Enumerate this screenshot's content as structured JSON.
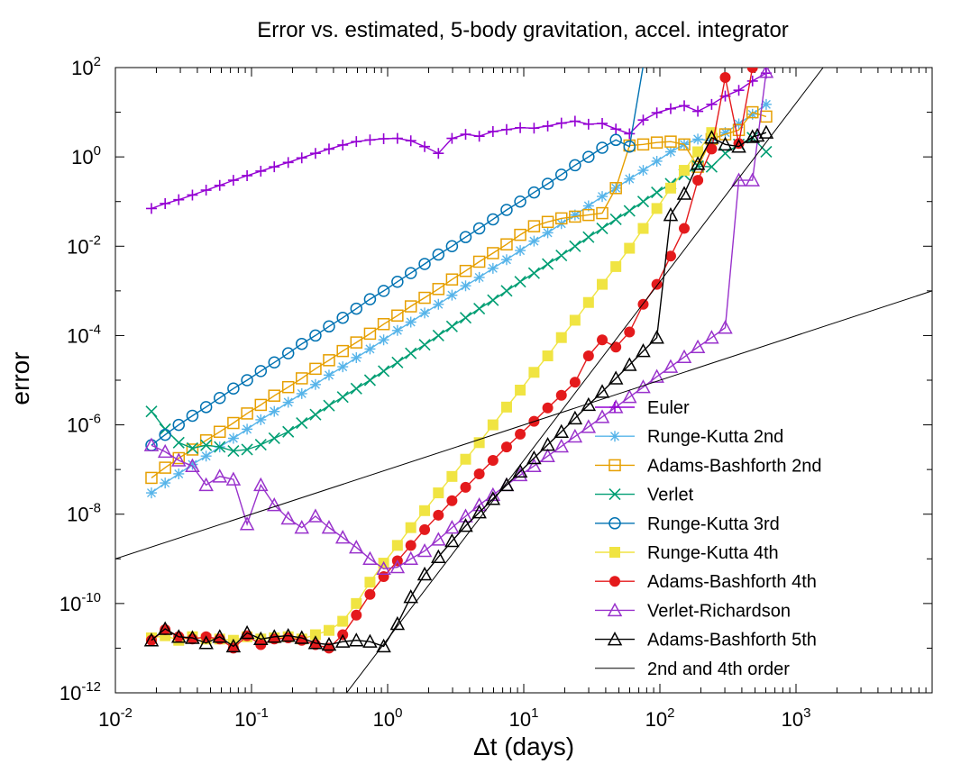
{
  "chart_data": {
    "type": "line",
    "title": "Error vs. estimated, 5-body gravitation, accel. integrator",
    "xlabel": "Δt (days)",
    "ylabel": "error",
    "xscale": "log",
    "yscale": "log",
    "xlim": [
      0.01,
      10000
    ],
    "ylim": [
      1e-12,
      100
    ],
    "x_ticks": [
      {
        "value": 0.01,
        "base": "10",
        "exp": "-2"
      },
      {
        "value": 0.1,
        "base": "10",
        "exp": "-1"
      },
      {
        "value": 1,
        "base": "10",
        "exp": "0"
      },
      {
        "value": 10,
        "base": "10",
        "exp": "1"
      },
      {
        "value": 100,
        "base": "10",
        "exp": "2"
      },
      {
        "value": 1000,
        "base": "10",
        "exp": "3"
      }
    ],
    "y_ticks": [
      {
        "value": 1e-12,
        "base": "10",
        "exp": "-12"
      },
      {
        "value": 1e-10,
        "base": "10",
        "exp": "-10"
      },
      {
        "value": 1e-08,
        "base": "10",
        "exp": "-8"
      },
      {
        "value": 1e-06,
        "base": "10",
        "exp": "-6"
      },
      {
        "value": 0.0001,
        "base": "10",
        "exp": "-4"
      },
      {
        "value": 0.01,
        "base": "10",
        "exp": "-2"
      },
      {
        "value": 1,
        "base": "10",
        "exp": "0"
      },
      {
        "value": 100,
        "base": "10",
        "exp": "2"
      }
    ],
    "legend_position": "bottom-right",
    "grid": false,
    "series": [
      {
        "name": "Euler",
        "color": "#9400d3",
        "marker": "plus",
        "x": [
          0.0184,
          0.0232,
          0.0292,
          0.0368,
          0.0464,
          0.0584,
          0.0736,
          0.0928,
          0.117,
          0.147,
          0.186,
          0.234,
          0.295,
          0.371,
          0.468,
          0.589,
          0.742,
          0.935,
          1.18,
          1.48,
          1.87,
          2.36,
          2.97,
          3.74,
          4.71,
          5.94,
          7.48,
          9.42,
          11.9,
          15.0,
          18.9,
          23.8,
          29.9,
          37.7,
          47.5,
          59.8,
          75.4,
          95.0,
          120,
          151,
          190,
          240,
          302,
          380,
          479,
          604
        ],
        "y": [
          0.07,
          0.09,
          0.11,
          0.14,
          0.18,
          0.23,
          0.3,
          0.38,
          0.48,
          0.6,
          0.75,
          0.95,
          1.2,
          1.5,
          1.85,
          2.2,
          2.4,
          2.55,
          2.6,
          2.3,
          1.7,
          1.2,
          2.6,
          3.2,
          2.9,
          3.7,
          4.1,
          4.5,
          4.4,
          4.9,
          5.7,
          6.3,
          5.4,
          5.6,
          4.2,
          3.3,
          6.7,
          9.7,
          12,
          14,
          10.5,
          15,
          23,
          31,
          50,
          75
        ]
      },
      {
        "name": "Runge-Kutta 2nd",
        "color": "#56b4e9",
        "marker": "star",
        "x": [
          0.0184,
          0.0232,
          0.0292,
          0.0368,
          0.0464,
          0.0584,
          0.0736,
          0.0928,
          0.117,
          0.147,
          0.186,
          0.234,
          0.295,
          0.371,
          0.468,
          0.589,
          0.742,
          0.935,
          1.18,
          1.48,
          1.87,
          2.36,
          2.97,
          3.74,
          4.71,
          5.94,
          7.48,
          9.42,
          11.9,
          15.0,
          18.9,
          23.8,
          29.9,
          37.7,
          47.5,
          59.8,
          75.4,
          95.0,
          120,
          151,
          190,
          240,
          302,
          380,
          479,
          604
        ],
        "y": [
          3e-08,
          5e-08,
          8e-08,
          1.3e-07,
          2e-07,
          3.2e-07,
          5e-07,
          8e-07,
          1.3e-06,
          2e-06,
          3.2e-06,
          5e-06,
          8e-06,
          1.3e-05,
          2e-05,
          3.2e-05,
          5e-05,
          8e-05,
          0.00013,
          0.0002,
          0.00032,
          0.0005,
          0.0008,
          0.0013,
          0.002,
          0.0032,
          0.005,
          0.008,
          0.013,
          0.02,
          0.032,
          0.05,
          0.08,
          0.13,
          0.2,
          0.32,
          0.5,
          0.8,
          1.3,
          1.9,
          2.5,
          2.3,
          3.5,
          5.5,
          9,
          15
        ]
      },
      {
        "name": "Adams-Bashforth 2nd",
        "color": "#e69f00",
        "marker": "square-open",
        "x": [
          0.0184,
          0.0232,
          0.0292,
          0.0368,
          0.0464,
          0.0584,
          0.0736,
          0.0928,
          0.117,
          0.147,
          0.186,
          0.234,
          0.295,
          0.371,
          0.468,
          0.589,
          0.742,
          0.935,
          1.18,
          1.48,
          1.87,
          2.36,
          2.97,
          3.74,
          4.71,
          5.94,
          7.48,
          9.42,
          11.9,
          15.0,
          18.9,
          23.8,
          29.9,
          37.7,
          47.5,
          59.8,
          75.4,
          95.0,
          120,
          151,
          190,
          240,
          302,
          380,
          479,
          604
        ],
        "y": [
          6.5e-08,
          1.1e-07,
          1.8e-07,
          2.8e-07,
          4.5e-07,
          7e-07,
          1.1e-06,
          1.8e-06,
          2.8e-06,
          4.5e-06,
          7e-06,
          1.1e-05,
          1.8e-05,
          2.8e-05,
          4.5e-05,
          7e-05,
          0.00011,
          0.00018,
          0.00028,
          0.00045,
          0.0007,
          0.0011,
          0.0018,
          0.0028,
          0.0045,
          0.007,
          0.011,
          0.018,
          0.028,
          0.035,
          0.042,
          0.046,
          0.05,
          0.055,
          0.2,
          1.8,
          1.9,
          2.1,
          2.2,
          1.9,
          0.6,
          2.5,
          3.2,
          4,
          10,
          8
        ]
      },
      {
        "name": "Verlet",
        "color": "#009e73",
        "marker": "x",
        "x": [
          0.0184,
          0.0232,
          0.0292,
          0.0368,
          0.0464,
          0.0584,
          0.0736,
          0.0928,
          0.117,
          0.147,
          0.186,
          0.234,
          0.295,
          0.371,
          0.468,
          0.589,
          0.742,
          0.935,
          1.18,
          1.48,
          1.87,
          2.36,
          2.97,
          3.74,
          4.71,
          5.94,
          7.48,
          9.42,
          11.9,
          15.0,
          18.9,
          23.8,
          29.9,
          37.7,
          47.5,
          59.8,
          75.4,
          95.0,
          120,
          151,
          190,
          240,
          302,
          380,
          479,
          604
        ],
        "y": [
          2e-06,
          8e-07,
          4e-07,
          3e-07,
          3.5e-07,
          3.2e-07,
          2.6e-07,
          2.8e-07,
          3.6e-07,
          5e-07,
          7e-07,
          1.1e-06,
          1.7e-06,
          2.7e-06,
          4.2e-06,
          6.5e-06,
          1e-05,
          1.6e-05,
          2.5e-05,
          4e-05,
          6.2e-05,
          0.0001,
          0.00016,
          0.00025,
          0.0004,
          0.00062,
          0.001,
          0.0016,
          0.0025,
          0.004,
          0.0062,
          0.01,
          0.016,
          0.025,
          0.04,
          0.062,
          0.1,
          0.16,
          0.25,
          0.4,
          0.62,
          0.6,
          1.2,
          1.9,
          2.7,
          1.3
        ]
      },
      {
        "name": "Runge-Kutta 3rd",
        "color": "#0072b2",
        "marker": "circle-open",
        "x": [
          0.0184,
          0.0232,
          0.0292,
          0.0368,
          0.0464,
          0.0584,
          0.0736,
          0.0928,
          0.117,
          0.147,
          0.186,
          0.234,
          0.295,
          0.371,
          0.468,
          0.589,
          0.742,
          0.935,
          1.18,
          1.48,
          1.87,
          2.36,
          2.97,
          3.74,
          4.71,
          5.94,
          7.48,
          9.42,
          11.9,
          15.0,
          18.9,
          23.8,
          29.9,
          37.7,
          47.5,
          59.8,
          78
        ],
        "y": [
          3.5e-07,
          6e-07,
          1e-06,
          1.6e-06,
          2.5e-06,
          4e-06,
          6.5e-06,
          1e-05,
          1.6e-05,
          2.5e-05,
          4e-05,
          6.5e-05,
          0.0001,
          0.00016,
          0.00025,
          0.0004,
          0.00065,
          0.001,
          0.0016,
          0.0025,
          0.004,
          0.0065,
          0.01,
          0.016,
          0.025,
          0.04,
          0.065,
          0.1,
          0.16,
          0.25,
          0.4,
          0.65,
          1.0,
          1.6,
          2.4,
          1.7,
          200
        ]
      },
      {
        "name": "Runge-Kutta 4th",
        "color": "#f0e442",
        "marker": "square-filled",
        "x": [
          0.0184,
          0.0232,
          0.0292,
          0.0368,
          0.0464,
          0.0584,
          0.0736,
          0.0928,
          0.117,
          0.147,
          0.186,
          0.234,
          0.295,
          0.371,
          0.468,
          0.589,
          0.742,
          0.935,
          1.18,
          1.48,
          1.87,
          2.36,
          2.97,
          3.74,
          4.71,
          5.94,
          7.48,
          9.42,
          11.9,
          15.0,
          18.9,
          23.8,
          29.9,
          37.7,
          47.5,
          59.8,
          75.4,
          95.0,
          120,
          151,
          190,
          240
        ],
        "y": [
          1.7e-11,
          1.9e-11,
          1.5e-11,
          1.8e-11,
          1.6e-11,
          1.6e-11,
          1.5e-11,
          1.8e-11,
          1.6e-11,
          1.7e-11,
          1.8e-11,
          1.6e-11,
          2e-11,
          2.5e-11,
          4e-11,
          1e-10,
          3e-10,
          8e-10,
          2e-09,
          5e-09,
          1.2e-08,
          3e-08,
          7e-08,
          1.7e-07,
          4e-07,
          1e-06,
          2.5e-06,
          6e-06,
          1.5e-05,
          3.5e-05,
          9e-05,
          0.00022,
          0.00055,
          0.0014,
          0.0035,
          0.009,
          0.025,
          0.07,
          0.2,
          0.5,
          1.3,
          3.5
        ]
      },
      {
        "name": "Adams-Bashforth 4th",
        "color": "#e41a1c",
        "marker": "circle-filled",
        "x": [
          0.0184,
          0.0232,
          0.0292,
          0.0368,
          0.0464,
          0.0584,
          0.0736,
          0.0928,
          0.117,
          0.147,
          0.186,
          0.234,
          0.295,
          0.371,
          0.468,
          0.589,
          0.742,
          0.935,
          1.18,
          1.48,
          1.87,
          2.36,
          2.97,
          3.74,
          4.71,
          5.94,
          7.48,
          9.42,
          11.9,
          15.0,
          18.9,
          23.8,
          29.9,
          37.7,
          47.5,
          59.8,
          75.4,
          95.0,
          120,
          151,
          190,
          240,
          302,
          380,
          479
        ],
        "y": [
          1.5e-11,
          2.6e-11,
          1.8e-11,
          1.6e-11,
          1.8e-11,
          1.6e-11,
          1e-11,
          1.9e-11,
          1.2e-11,
          1.6e-11,
          1.7e-11,
          1.5e-11,
          1.2e-11,
          1e-11,
          2e-11,
          5.5e-11,
          1.6e-10,
          4e-10,
          9e-10,
          2e-09,
          4.5e-09,
          9.5e-09,
          2e-08,
          4e-08,
          8e-08,
          1.6e-07,
          3.2e-07,
          6.2e-07,
          1.2e-06,
          2.4e-06,
          4.6e-06,
          9e-06,
          3.5e-05,
          8e-05,
          5.5e-05,
          0.00012,
          0.0005,
          0.0014,
          0.006,
          0.025,
          0.3,
          1.5,
          60,
          2,
          100
        ]
      },
      {
        "name": "Verlet-Richardson",
        "color": "#9932cc",
        "marker": "triangle-open",
        "x": [
          0.0184,
          0.0232,
          0.0292,
          0.0368,
          0.0464,
          0.0584,
          0.0736,
          0.0928,
          0.117,
          0.147,
          0.186,
          0.234,
          0.295,
          0.371,
          0.468,
          0.589,
          0.742,
          0.935,
          1.18,
          1.48,
          1.87,
          2.36,
          2.97,
          3.74,
          4.71,
          5.94,
          7.48,
          9.42,
          11.9,
          15.0,
          18.9,
          23.8,
          29.9,
          37.7,
          47.5,
          59.8,
          75.4,
          95.0,
          120,
          151,
          190,
          240,
          302,
          380,
          479,
          604
        ],
        "y": [
          3.5e-07,
          2.5e-07,
          1.6e-07,
          1.2e-07,
          4.5e-08,
          7e-08,
          6e-08,
          6e-09,
          4.5e-08,
          1.6e-08,
          8e-09,
          5e-09,
          9e-09,
          5e-09,
          3e-09,
          1.8e-09,
          1e-09,
          6e-10,
          6.5e-10,
          1e-09,
          1.5e-09,
          2.7e-09,
          5e-09,
          9e-09,
          1.6e-08,
          2.7e-08,
          4.5e-08,
          7.5e-08,
          1.2e-07,
          2e-07,
          3.3e-07,
          5.5e-07,
          9e-07,
          1.5e-06,
          2.5e-06,
          4.2e-06,
          7e-06,
          1.2e-05,
          2e-05,
          3.3e-05,
          5.5e-05,
          9e-05,
          0.00015,
          0.3,
          0.3,
          80
        ]
      },
      {
        "name": "Adams-Bashforth 5th",
        "color": "#000000",
        "marker": "triangle-open",
        "x": [
          0.0184,
          0.0232,
          0.0292,
          0.0368,
          0.0464,
          0.0584,
          0.0736,
          0.0928,
          0.117,
          0.147,
          0.186,
          0.234,
          0.295,
          0.371,
          0.468,
          0.589,
          0.742,
          0.935,
          1.18,
          1.48,
          1.87,
          2.36,
          2.97,
          3.74,
          4.71,
          5.94,
          7.48,
          9.42,
          11.9,
          15.0,
          18.9,
          23.8,
          29.9,
          37.7,
          47.5,
          59.8,
          75.4,
          95.0,
          120,
          151,
          190,
          240,
          302,
          380,
          479,
          520,
          604
        ],
        "y": [
          1.5e-11,
          2.7e-11,
          1.8e-11,
          1.7e-11,
          1.3e-11,
          1.8e-11,
          1.1e-11,
          2.2e-11,
          1.6e-11,
          1.8e-11,
          1.9e-11,
          1.7e-11,
          1.3e-11,
          1.2e-11,
          1.4e-11,
          1.5e-11,
          1.4e-11,
          1.1e-11,
          3.5e-11,
          1.4e-10,
          4.5e-10,
          1.1e-09,
          2.5e-09,
          5.5e-09,
          1.1e-08,
          2.2e-08,
          4.5e-08,
          9e-08,
          1.8e-07,
          3.6e-07,
          7e-07,
          1.4e-06,
          2.8e-06,
          5.5e-06,
          1.1e-05,
          2.2e-05,
          4.5e-05,
          9e-05,
          0.05,
          0.15,
          0.7,
          2.7,
          1.9,
          1.7,
          2.8,
          3.0,
          3.5
        ]
      },
      {
        "name": "2nd and 4th order",
        "color": "#000000",
        "marker": "none",
        "x": [
          0.01,
          10000
        ],
        "y": [
          1e-09,
          0.001
        ]
      },
      {
        "name": "",
        "color": "#000000",
        "marker": "none",
        "x": [
          0.5,
          4000
        ],
        "y": [
          1e-12,
          4100.0
        ]
      }
    ]
  }
}
